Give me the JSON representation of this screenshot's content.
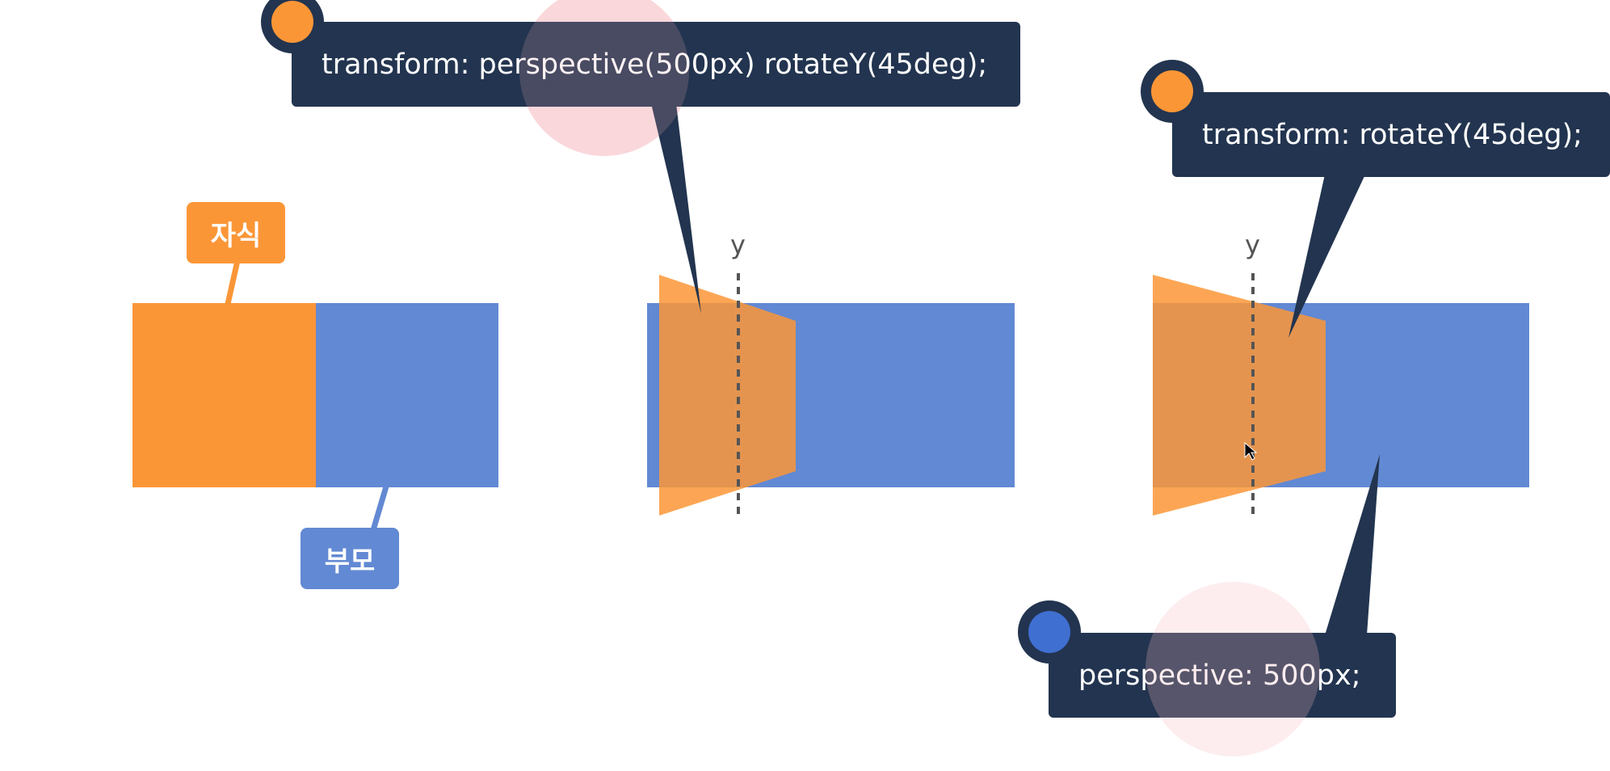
{
  "colors": {
    "parent": "#6289d3",
    "child": "#fb9637",
    "callout_bg": "#22344f",
    "dot_orange": "#fb9637",
    "dot_blue": "#3f6fd1",
    "highlight": "#f7b8bf"
  },
  "labels": {
    "child": "자식",
    "parent": "부모",
    "axis_y_1": "y",
    "axis_y_2": "y"
  },
  "callouts": {
    "transform_perspective": "transform: perspective(500px) rotateY(45deg);",
    "transform_rotate": "transform: rotateY(45deg);",
    "perspective_prop": "perspective: 500px;"
  }
}
